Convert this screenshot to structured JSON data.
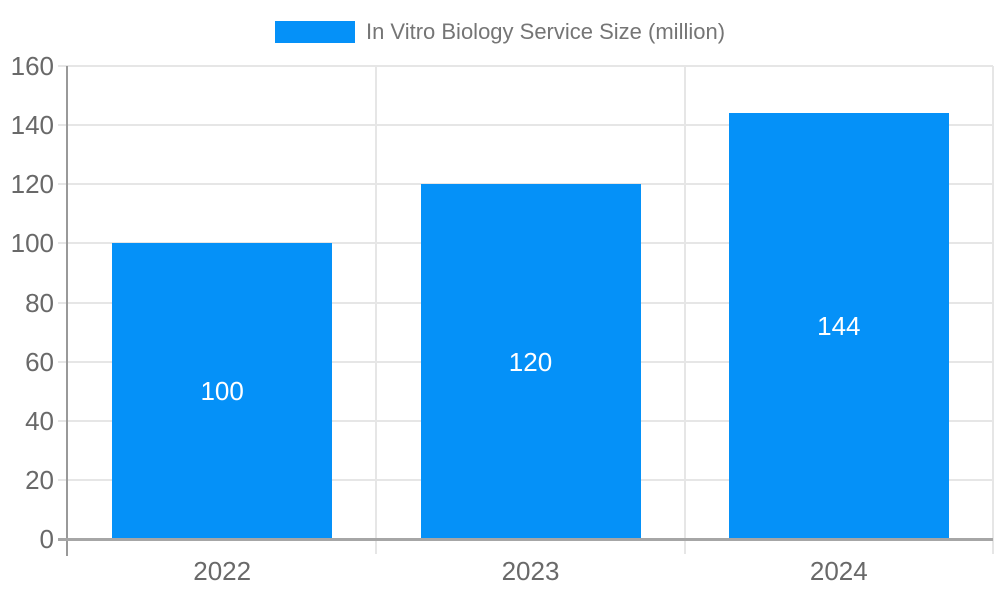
{
  "legend": {
    "label": "In Vitro Biology Service Size (million)"
  },
  "chart_data": {
    "type": "bar",
    "title": "In Vitro Biology Service Size (million)",
    "categories": [
      "2022",
      "2023",
      "2024"
    ],
    "values": [
      100,
      120,
      144
    ],
    "bar_value_labels": [
      "100",
      "120",
      "144"
    ],
    "xlabel": "",
    "ylabel": "",
    "ylim": [
      0,
      160
    ],
    "yticks": [
      0,
      20,
      40,
      60,
      80,
      100,
      120,
      140,
      160
    ],
    "grid": true,
    "legend_position": "top"
  },
  "colors": {
    "bar": "#0591F8",
    "bar_label": "#FFFFFF",
    "gridline": "#E6E6E6",
    "y_axis_line": "#999999",
    "x_axis_line": "#A6A6A6",
    "tick_label": "#696969",
    "legend_text": "#757575",
    "background": "#FFFFFF"
  }
}
